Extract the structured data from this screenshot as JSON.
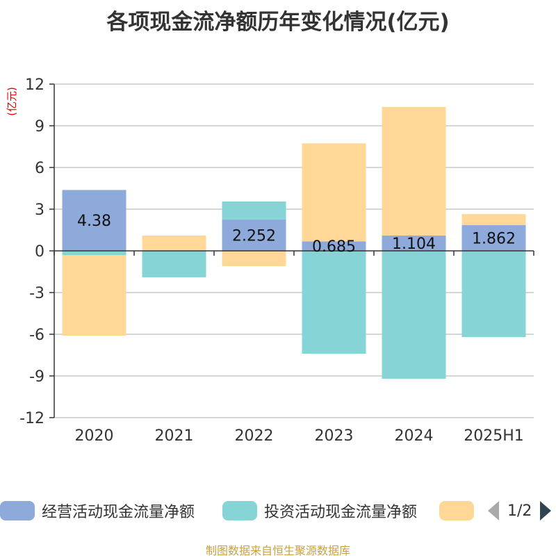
{
  "title": "各项现金流净额历年变化情况(亿元)",
  "source": "制图数据来自恒生聚源数据库",
  "legend": {
    "pager_text": "1/2",
    "items": [
      {
        "label": "经营活动现金流量净额",
        "color": "#8eaadb"
      },
      {
        "label": "投资活动现金流量净额",
        "color": "#86d4d6"
      },
      {
        "label": "",
        "color": "#ffd898"
      }
    ]
  },
  "chart_data": {
    "type": "bar",
    "stacked": true,
    "ylabel": "(亿元)",
    "ylim": [
      -12,
      12
    ],
    "yticks": [
      12,
      9,
      6,
      3,
      0,
      -3,
      -6,
      -9,
      -12
    ],
    "categories": [
      "2020",
      "2021",
      "2022",
      "2023",
      "2024",
      "2025H1"
    ],
    "series": [
      {
        "name": "经营活动现金流量净额",
        "color": "#8eaadb",
        "values": [
          4.38,
          0.02,
          2.252,
          0.685,
          1.104,
          1.862
        ],
        "labels": [
          "4.38",
          "",
          "2.252",
          "0.685",
          "1.104",
          "1.862"
        ]
      },
      {
        "name": "投资活动现金流量净额",
        "color": "#86d4d6",
        "values": [
          -0.3,
          -1.9,
          1.3,
          -7.4,
          -9.2,
          -6.2
        ],
        "labels": [
          "",
          "",
          "",
          "",
          "",
          ""
        ]
      },
      {
        "color": "#ffd898",
        "values": [
          -5.8,
          1.08,
          -1.1,
          7.05,
          9.25,
          0.78
        ],
        "labels": [
          "",
          "",
          "",
          "",
          "",
          ""
        ]
      }
    ]
  }
}
